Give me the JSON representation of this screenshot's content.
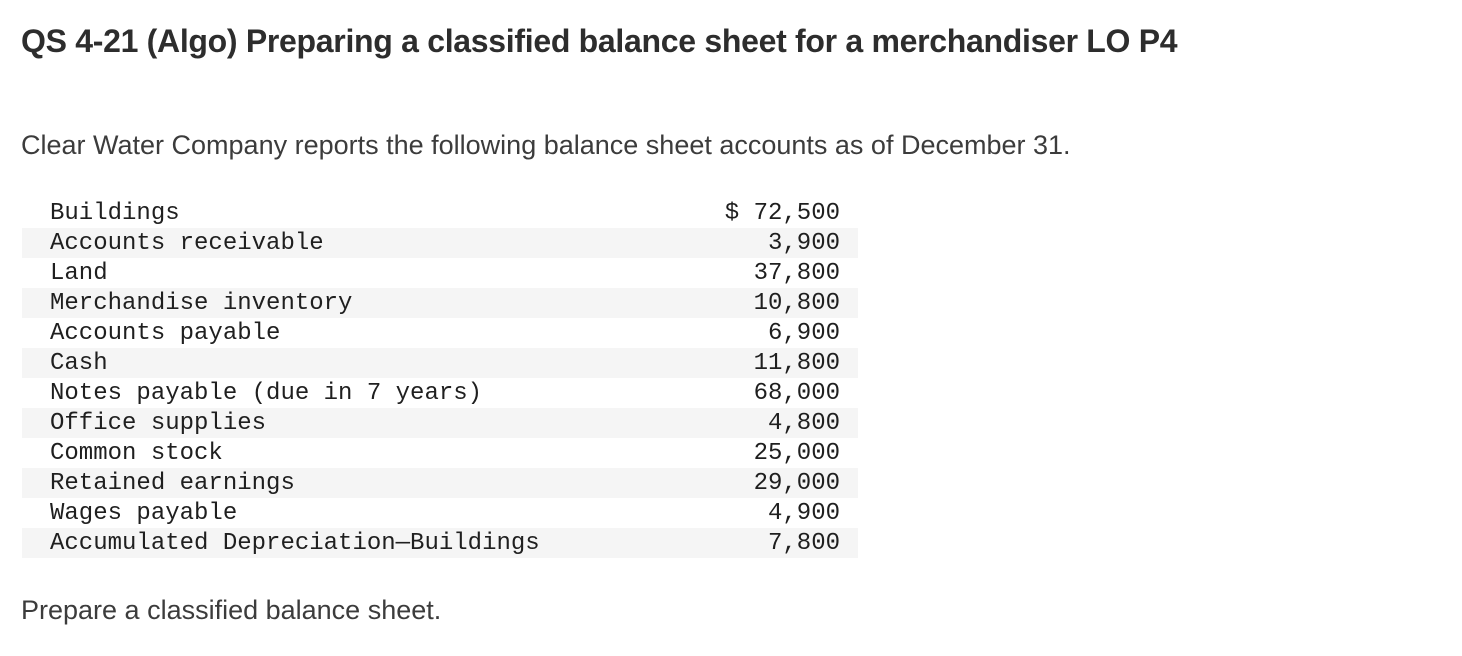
{
  "page": {
    "title": "QS 4-21 (Algo) Preparing a classified balance sheet for a merchandiser LO P4",
    "intro": "Clear Water Company reports the following balance sheet accounts as of December 31.",
    "instruction": "Prepare a classified balance sheet."
  },
  "accounts_table": {
    "rows": [
      {
        "label": "Buildings",
        "amount": "$ 72,500"
      },
      {
        "label": "Accounts receivable",
        "amount": "3,900"
      },
      {
        "label": "Land",
        "amount": "37,800"
      },
      {
        "label": "Merchandise inventory",
        "amount": "10,800"
      },
      {
        "label": "Accounts payable",
        "amount": "6,900"
      },
      {
        "label": "Cash",
        "amount": "11,800"
      },
      {
        "label": "Notes payable (due in 7 years)",
        "amount": "68,000"
      },
      {
        "label": "Office supplies",
        "amount": "4,800"
      },
      {
        "label": "Common stock",
        "amount": "25,000"
      },
      {
        "label": "Retained earnings",
        "amount": "29,000"
      },
      {
        "label": "Wages payable",
        "amount": "4,900"
      },
      {
        "label": "Accumulated Depreciation—Buildings",
        "amount": "7,800"
      }
    ]
  },
  "colors": {
    "background": "#ffffff",
    "title_text": "#2d2d2d",
    "body_text": "#3c3c3c",
    "table_text": "#1f1f1f",
    "row_stripe": "#f5f5f5"
  }
}
